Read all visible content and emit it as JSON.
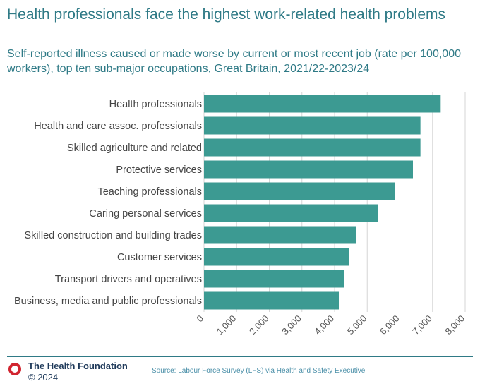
{
  "title": "Health professionals face the highest work-related health problems",
  "subtitle": "Self-reported illness caused or made worse by current or most recent job (rate per 100,000 workers), top ten sub-major occupations, Great Britain, 2021/22-2023/24",
  "colors": {
    "bar": "#3c9a92",
    "grid": "#d6d6d6",
    "axis_text": "#555555",
    "label_text": "#444444"
  },
  "chart_data": {
    "type": "bar",
    "orientation": "horizontal",
    "categories": [
      "Health professionals",
      "Health and care assoc. professionals",
      "Skilled agriculture and related",
      "Protective services",
      "Teaching professionals",
      "Caring personal services",
      "Skilled construction and building trades",
      "Customer services",
      "Transport drivers and operatives",
      "Business, media and public professionals"
    ],
    "values": [
      7250,
      6630,
      6630,
      6400,
      5840,
      5340,
      4670,
      4450,
      4300,
      4130
    ],
    "xlim": [
      0,
      8000
    ],
    "xticks": [
      0,
      1000,
      2000,
      3000,
      4000,
      5000,
      6000,
      7000,
      8000
    ],
    "xtick_labels": [
      "0",
      "1,000",
      "2,000",
      "3,000",
      "4,000",
      "5,000",
      "6,000",
      "7,000",
      "8,000"
    ],
    "grid": true
  },
  "footer": {
    "organization": "The Health Foundation",
    "copyright": "© 2024",
    "source": "Source: Labour Force Survey (LFS) via Health and Safety Executive"
  }
}
